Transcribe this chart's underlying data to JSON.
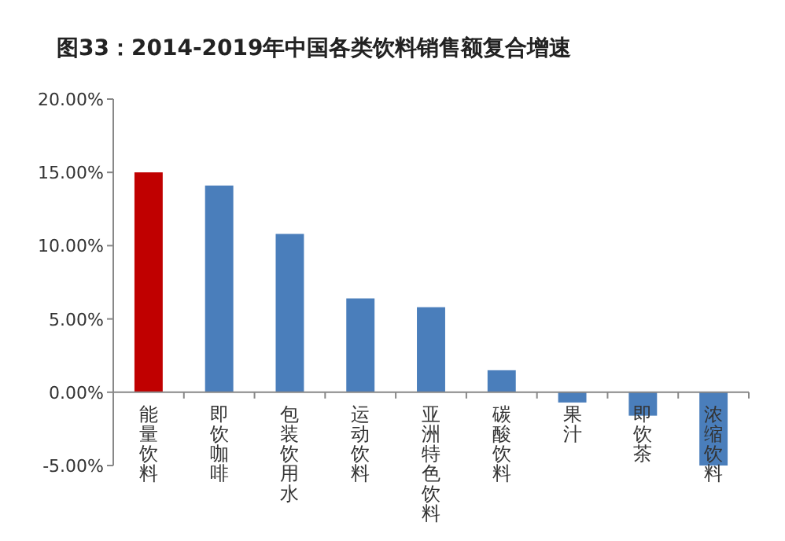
{
  "chart_data": {
    "type": "bar",
    "title": "图33：2014-2019年中国各类饮料销售额复合增速",
    "categories": [
      "能量饮料",
      "即饮咖啡",
      "包装饮用水",
      "运动饮料",
      "亚洲特色饮料",
      "碳酸饮料",
      "果汁",
      "即饮茶",
      "浓缩饮料"
    ],
    "values": [
      15.0,
      14.1,
      10.8,
      6.4,
      5.8,
      1.5,
      -0.7,
      -1.6,
      -5.0
    ],
    "colors": [
      "#c00000",
      "#4a7ebb",
      "#4a7ebb",
      "#4a7ebb",
      "#4a7ebb",
      "#4a7ebb",
      "#4a7ebb",
      "#4a7ebb",
      "#4a7ebb"
    ],
    "ylim": [
      -5,
      20
    ],
    "yticks": [
      {
        "value": -5,
        "label": "-5.00%"
      },
      {
        "value": 0,
        "label": "0.00%"
      },
      {
        "value": 5,
        "label": "5.00%"
      },
      {
        "value": 10,
        "label": "10.00%"
      },
      {
        "value": 15,
        "label": "15.00%"
      },
      {
        "value": 20,
        "label": "20.00%"
      }
    ],
    "orientation": "vertical"
  }
}
